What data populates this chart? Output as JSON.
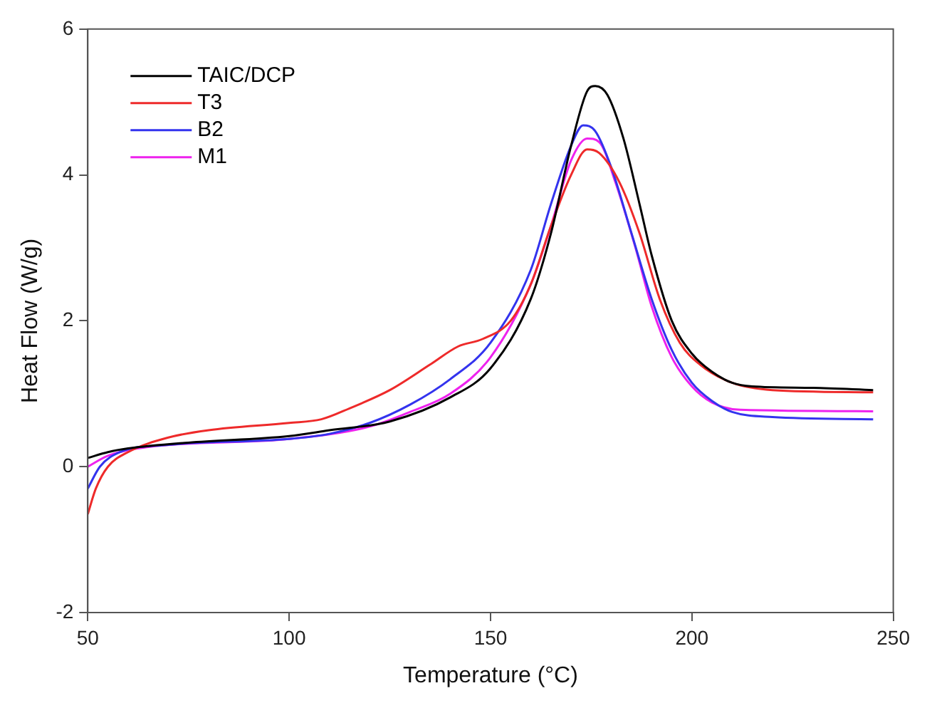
{
  "chart_data": {
    "type": "line",
    "xlabel": "Temperature (°C)",
    "ylabel": "Heat Flow (W/g)",
    "xlim": [
      50,
      250
    ],
    "xticks": [
      50,
      100,
      150,
      200,
      250
    ],
    "ylim": [
      -2,
      6
    ],
    "yticks": [
      -2,
      0,
      2,
      4,
      6
    ],
    "grid": false,
    "legend": "top left",
    "marker": "none",
    "line_style": "solid",
    "series": [
      {
        "name": "TAIC/DCP",
        "color": "#000000",
        "x": [
          50,
          55,
          60,
          75,
          100,
          110,
          125,
          140,
          150,
          160,
          165,
          170,
          174,
          176,
          179,
          183,
          187,
          190,
          195,
          200,
          205,
          210,
          215,
          230,
          245
        ],
        "values": [
          0.12,
          0.2,
          0.25,
          0.33,
          0.42,
          0.5,
          0.62,
          0.95,
          1.35,
          2.3,
          3.2,
          4.4,
          5.15,
          5.22,
          5.1,
          4.5,
          3.6,
          2.9,
          2.0,
          1.55,
          1.3,
          1.15,
          1.1,
          1.08,
          1.05
        ]
      },
      {
        "name": "T3",
        "color": "#ee2a2a",
        "x": [
          50,
          52,
          55,
          60,
          70,
          80,
          100,
          108,
          115,
          125,
          135,
          142,
          148,
          155,
          160,
          165,
          170,
          174,
          177,
          182,
          187,
          192,
          197,
          202,
          210,
          220,
          245
        ],
        "values": [
          -0.65,
          -0.3,
          0,
          0.2,
          0.4,
          0.5,
          0.6,
          0.65,
          0.8,
          1.05,
          1.4,
          1.65,
          1.75,
          2.0,
          2.5,
          3.3,
          4.0,
          4.35,
          4.3,
          3.9,
          3.2,
          2.3,
          1.7,
          1.4,
          1.15,
          1.05,
          1.02
        ]
      },
      {
        "name": "B2",
        "color": "#3333ee",
        "x": [
          50,
          53,
          58,
          70,
          100,
          110,
          120,
          130,
          140,
          150,
          160,
          165,
          170,
          173,
          176,
          180,
          185,
          190,
          195,
          200,
          205,
          210,
          220,
          245
        ],
        "values": [
          -0.3,
          0,
          0.2,
          0.3,
          0.38,
          0.45,
          0.6,
          0.85,
          1.2,
          1.7,
          2.7,
          3.6,
          4.4,
          4.68,
          4.6,
          4.1,
          3.2,
          2.3,
          1.6,
          1.15,
          0.9,
          0.75,
          0.68,
          0.65
        ]
      },
      {
        "name": "M1",
        "color": "#ee22ee",
        "x": [
          50,
          55,
          65,
          100,
          120,
          130,
          140,
          150,
          160,
          165,
          170,
          174,
          177,
          181,
          186,
          190,
          195,
          200,
          205,
          212,
          245
        ],
        "values": [
          0,
          0.15,
          0.27,
          0.38,
          0.55,
          0.75,
          1.0,
          1.5,
          2.5,
          3.3,
          4.2,
          4.5,
          4.45,
          3.9,
          3.0,
          2.2,
          1.5,
          1.1,
          0.88,
          0.78,
          0.76
        ]
      }
    ]
  }
}
